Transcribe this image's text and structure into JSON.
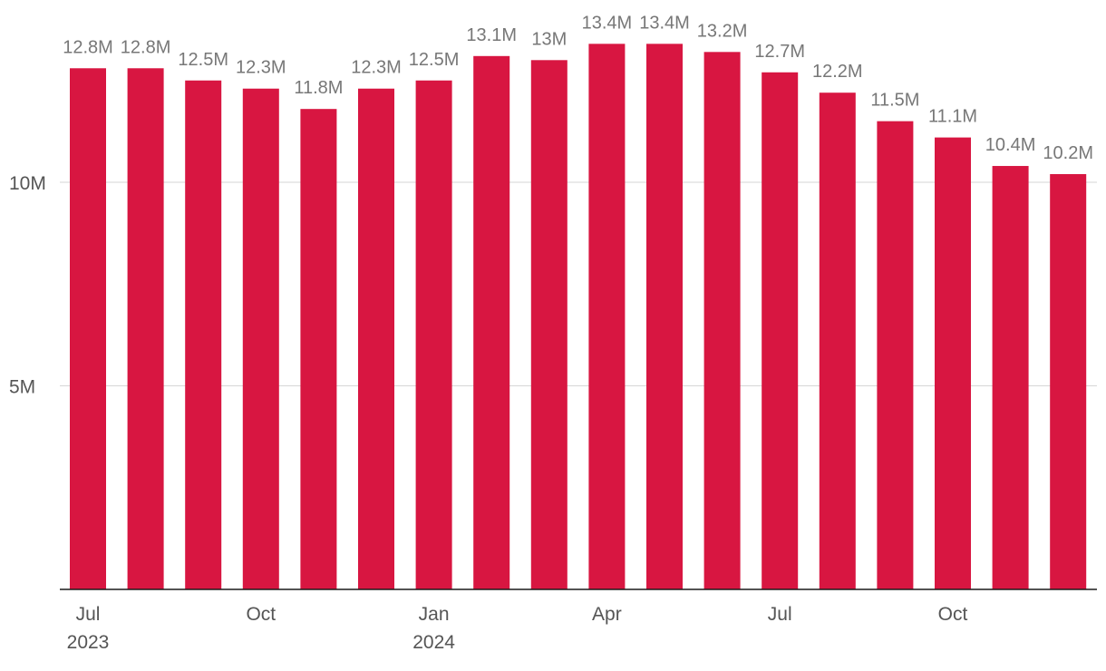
{
  "chart_data": {
    "type": "bar",
    "title": "",
    "xlabel": "",
    "ylabel": "",
    "categories": [
      "Jul 2023",
      "Aug 2023",
      "Sep 2023",
      "Oct 2023",
      "Nov 2023",
      "Dec 2023",
      "Jan 2024",
      "Feb 2024",
      "Mar 2024",
      "Apr 2024",
      "May 2024",
      "Jun 2024",
      "Jul 2024",
      "Aug 2024",
      "Sep 2024",
      "Oct 2024",
      "Nov 2024",
      "Dec 2024"
    ],
    "values": [
      12.8,
      12.8,
      12.5,
      12.3,
      11.8,
      12.3,
      12.5,
      13.1,
      13.0,
      13.4,
      13.4,
      13.2,
      12.7,
      12.2,
      11.5,
      11.1,
      10.4,
      10.2
    ],
    "value_labels": [
      "12.8M",
      "12.8M",
      "12.5M",
      "12.3M",
      "11.8M",
      "12.3M",
      "12.5M",
      "13.1M",
      "13M",
      "13.4M",
      "13.4M",
      "13.2M",
      "12.7M",
      "12.2M",
      "11.5M",
      "11.1M",
      "10.4M",
      "10.2M"
    ],
    "y_unit": "millions",
    "ylim": [
      0,
      14.5
    ],
    "y_ticks": [
      {
        "value": 5,
        "label": "5M"
      },
      {
        "value": 10,
        "label": "10M"
      }
    ],
    "x_ticks": [
      {
        "index": 0,
        "label": "Jul",
        "sublabel": "2023"
      },
      {
        "index": 3,
        "label": "Oct",
        "sublabel": ""
      },
      {
        "index": 6,
        "label": "Jan",
        "sublabel": "2024"
      },
      {
        "index": 9,
        "label": "Apr",
        "sublabel": ""
      },
      {
        "index": 12,
        "label": "Jul",
        "sublabel": ""
      },
      {
        "index": 15,
        "label": "Oct",
        "sublabel": ""
      }
    ],
    "grid": true,
    "legend": "none",
    "bar_color": "#d81641"
  }
}
